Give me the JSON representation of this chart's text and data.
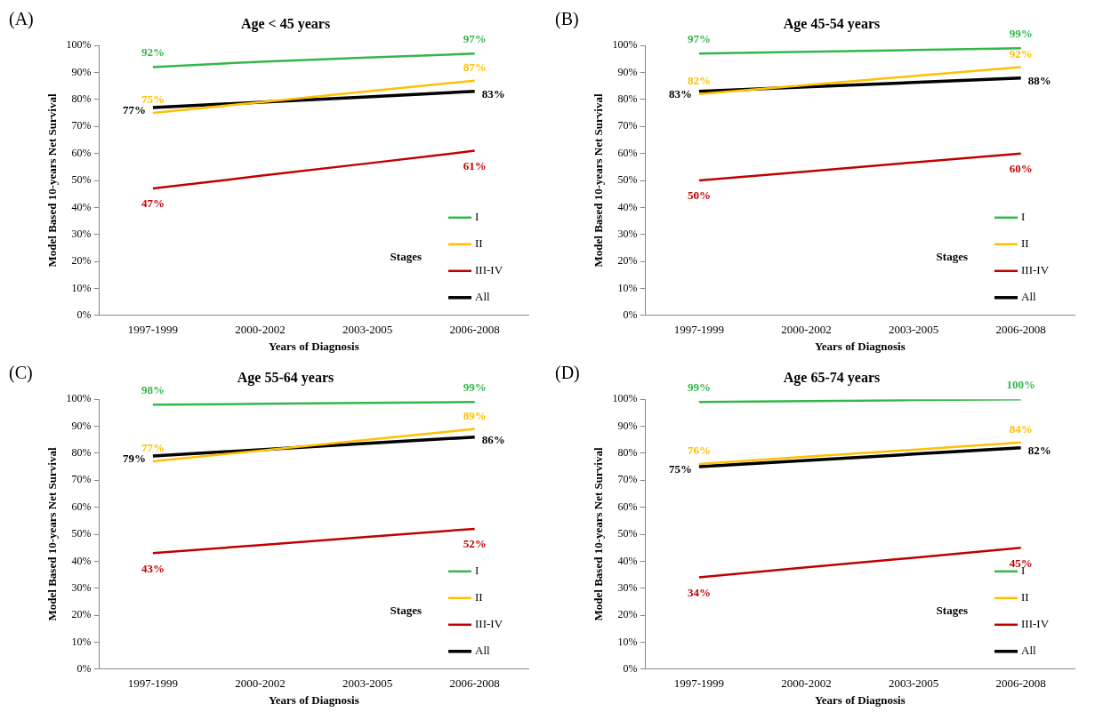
{
  "chart_data": [
    {
      "type": "line",
      "title": "Age < 45 years",
      "xlabel": "Years of Diagnosis",
      "ylabel": "Model Based 10-years Net Survival",
      "legend_title": "Stages",
      "legend": "bottom right",
      "annotations": [
        "(A)"
      ],
      "categories": [
        "1997-1999",
        "2000-2002",
        "2003-2005",
        "2006-2008"
      ],
      "ylim": [
        0,
        100
      ],
      "yticks": [
        {
          "value": 0,
          "label": "0%"
        },
        {
          "value": 10,
          "label": "10%"
        },
        {
          "value": 20,
          "label": "20%"
        },
        {
          "value": 30,
          "label": "30%"
        },
        {
          "value": 40,
          "label": "40%"
        },
        {
          "value": 50,
          "label": "50%"
        },
        {
          "value": 60,
          "label": "60%"
        },
        {
          "value": 70,
          "label": "70%"
        },
        {
          "value": 80,
          "label": "80%"
        },
        {
          "value": 90,
          "label": "90%"
        },
        {
          "value": 100,
          "label": "100%"
        }
      ],
      "series": [
        {
          "name": "I",
          "color": "#33b64a",
          "values": [
            92,
            94,
            95.5,
            97
          ],
          "value_labels": [
            "92%",
            null,
            null,
            "97%"
          ]
        },
        {
          "name": "II",
          "color": "#ffc000",
          "values": [
            75,
            79,
            83,
            87
          ],
          "value_labels": [
            "75%",
            null,
            null,
            "87%"
          ]
        },
        {
          "name": "III-IV",
          "color": "#c00000",
          "values": [
            47,
            51.7,
            56.3,
            61
          ],
          "value_labels": [
            "47%",
            null,
            null,
            "61%"
          ]
        },
        {
          "name": "All",
          "color": "#000000",
          "values": [
            77,
            79,
            81,
            83
          ],
          "value_labels": [
            "77%",
            null,
            null,
            "83%"
          ]
        }
      ]
    },
    {
      "type": "line",
      "title": "Age 45-54 years",
      "xlabel": "Years of Diagnosis",
      "ylabel": "Model Based 10-years Net Survival",
      "legend_title": "Stages",
      "legend": "bottom right",
      "annotations": [
        "(B)"
      ],
      "categories": [
        "1997-1999",
        "2000-2002",
        "2003-2005",
        "2006-2008"
      ],
      "ylim": [
        0,
        100
      ],
      "yticks": [
        {
          "value": 0,
          "label": "0%"
        },
        {
          "value": 10,
          "label": "10%"
        },
        {
          "value": 20,
          "label": "20%"
        },
        {
          "value": 30,
          "label": "30%"
        },
        {
          "value": 40,
          "label": "40%"
        },
        {
          "value": 50,
          "label": "50%"
        },
        {
          "value": 60,
          "label": "60%"
        },
        {
          "value": 70,
          "label": "70%"
        },
        {
          "value": 80,
          "label": "80%"
        },
        {
          "value": 90,
          "label": "90%"
        },
        {
          "value": 100,
          "label": "100%"
        }
      ],
      "series": [
        {
          "name": "I",
          "color": "#33b64a",
          "values": [
            97,
            97.7,
            98.3,
            99
          ],
          "value_labels": [
            "97%",
            null,
            null,
            "99%"
          ]
        },
        {
          "name": "II",
          "color": "#ffc000",
          "values": [
            82,
            85.3,
            88.7,
            92
          ],
          "value_labels": [
            "82%",
            null,
            null,
            "92%"
          ]
        },
        {
          "name": "III-IV",
          "color": "#c00000",
          "values": [
            50,
            53.3,
            56.7,
            60
          ],
          "value_labels": [
            "50%",
            null,
            null,
            "60%"
          ]
        },
        {
          "name": "All",
          "color": "#000000",
          "values": [
            83,
            84.7,
            86.3,
            88
          ],
          "value_labels": [
            "83%",
            null,
            null,
            "88%"
          ]
        }
      ]
    },
    {
      "type": "line",
      "title": "Age 55-64 years",
      "xlabel": "Years of Diagnosis",
      "ylabel": "Model Based 10-years Net Survival",
      "legend_title": "Stages",
      "legend": "bottom right",
      "annotations": [
        "(C)"
      ],
      "categories": [
        "1997-1999",
        "2000-2002",
        "2003-2005",
        "2006-2008"
      ],
      "ylim": [
        0,
        100
      ],
      "yticks": [
        {
          "value": 0,
          "label": "0%"
        },
        {
          "value": 10,
          "label": "10%"
        },
        {
          "value": 20,
          "label": "20%"
        },
        {
          "value": 30,
          "label": "30%"
        },
        {
          "value": 40,
          "label": "40%"
        },
        {
          "value": 50,
          "label": "50%"
        },
        {
          "value": 60,
          "label": "60%"
        },
        {
          "value": 70,
          "label": "70%"
        },
        {
          "value": 80,
          "label": "80%"
        },
        {
          "value": 90,
          "label": "90%"
        },
        {
          "value": 100,
          "label": "100%"
        }
      ],
      "series": [
        {
          "name": "I",
          "color": "#33b64a",
          "values": [
            98,
            98.3,
            98.7,
            99
          ],
          "value_labels": [
            "98%",
            null,
            null,
            "99%"
          ]
        },
        {
          "name": "II",
          "color": "#ffc000",
          "values": [
            77,
            81,
            85,
            89
          ],
          "value_labels": [
            "77%",
            null,
            null,
            "89%"
          ]
        },
        {
          "name": "III-IV",
          "color": "#c00000",
          "values": [
            43,
            46,
            49,
            52
          ],
          "value_labels": [
            "43%",
            null,
            null,
            "52%"
          ]
        },
        {
          "name": "All",
          "color": "#000000",
          "values": [
            79,
            81.3,
            83.7,
            86
          ],
          "value_labels": [
            "79%",
            null,
            null,
            "86%"
          ]
        }
      ]
    },
    {
      "type": "line",
      "title": "Age 65-74 years",
      "xlabel": "Years of Diagnosis",
      "ylabel": "Model Based 10-years Net Survival",
      "legend_title": "Stages",
      "legend": "bottom right",
      "annotations": [
        "(D)"
      ],
      "categories": [
        "1997-1999",
        "2000-2002",
        "2003-2005",
        "2006-2008"
      ],
      "ylim": [
        0,
        100
      ],
      "yticks": [
        {
          "value": 0,
          "label": "0%"
        },
        {
          "value": 10,
          "label": "10%"
        },
        {
          "value": 20,
          "label": "20%"
        },
        {
          "value": 30,
          "label": "30%"
        },
        {
          "value": 40,
          "label": "40%"
        },
        {
          "value": 50,
          "label": "50%"
        },
        {
          "value": 60,
          "label": "60%"
        },
        {
          "value": 70,
          "label": "70%"
        },
        {
          "value": 80,
          "label": "80%"
        },
        {
          "value": 90,
          "label": "90%"
        },
        {
          "value": 100,
          "label": "100%"
        }
      ],
      "series": [
        {
          "name": "I",
          "color": "#33b64a",
          "values": [
            99,
            99.3,
            99.7,
            100
          ],
          "value_labels": [
            "99%",
            null,
            null,
            "100%"
          ]
        },
        {
          "name": "II",
          "color": "#ffc000",
          "values": [
            76,
            78.7,
            81.3,
            84
          ],
          "value_labels": [
            "76%",
            null,
            null,
            "84%"
          ]
        },
        {
          "name": "III-IV",
          "color": "#c00000",
          "values": [
            34,
            37.7,
            41.3,
            45
          ],
          "value_labels": [
            "34%",
            null,
            null,
            "45%"
          ]
        },
        {
          "name": "All",
          "color": "#000000",
          "values": [
            75,
            77.3,
            79.7,
            82
          ],
          "value_labels": [
            "75%",
            null,
            null,
            "82%"
          ]
        }
      ]
    }
  ]
}
